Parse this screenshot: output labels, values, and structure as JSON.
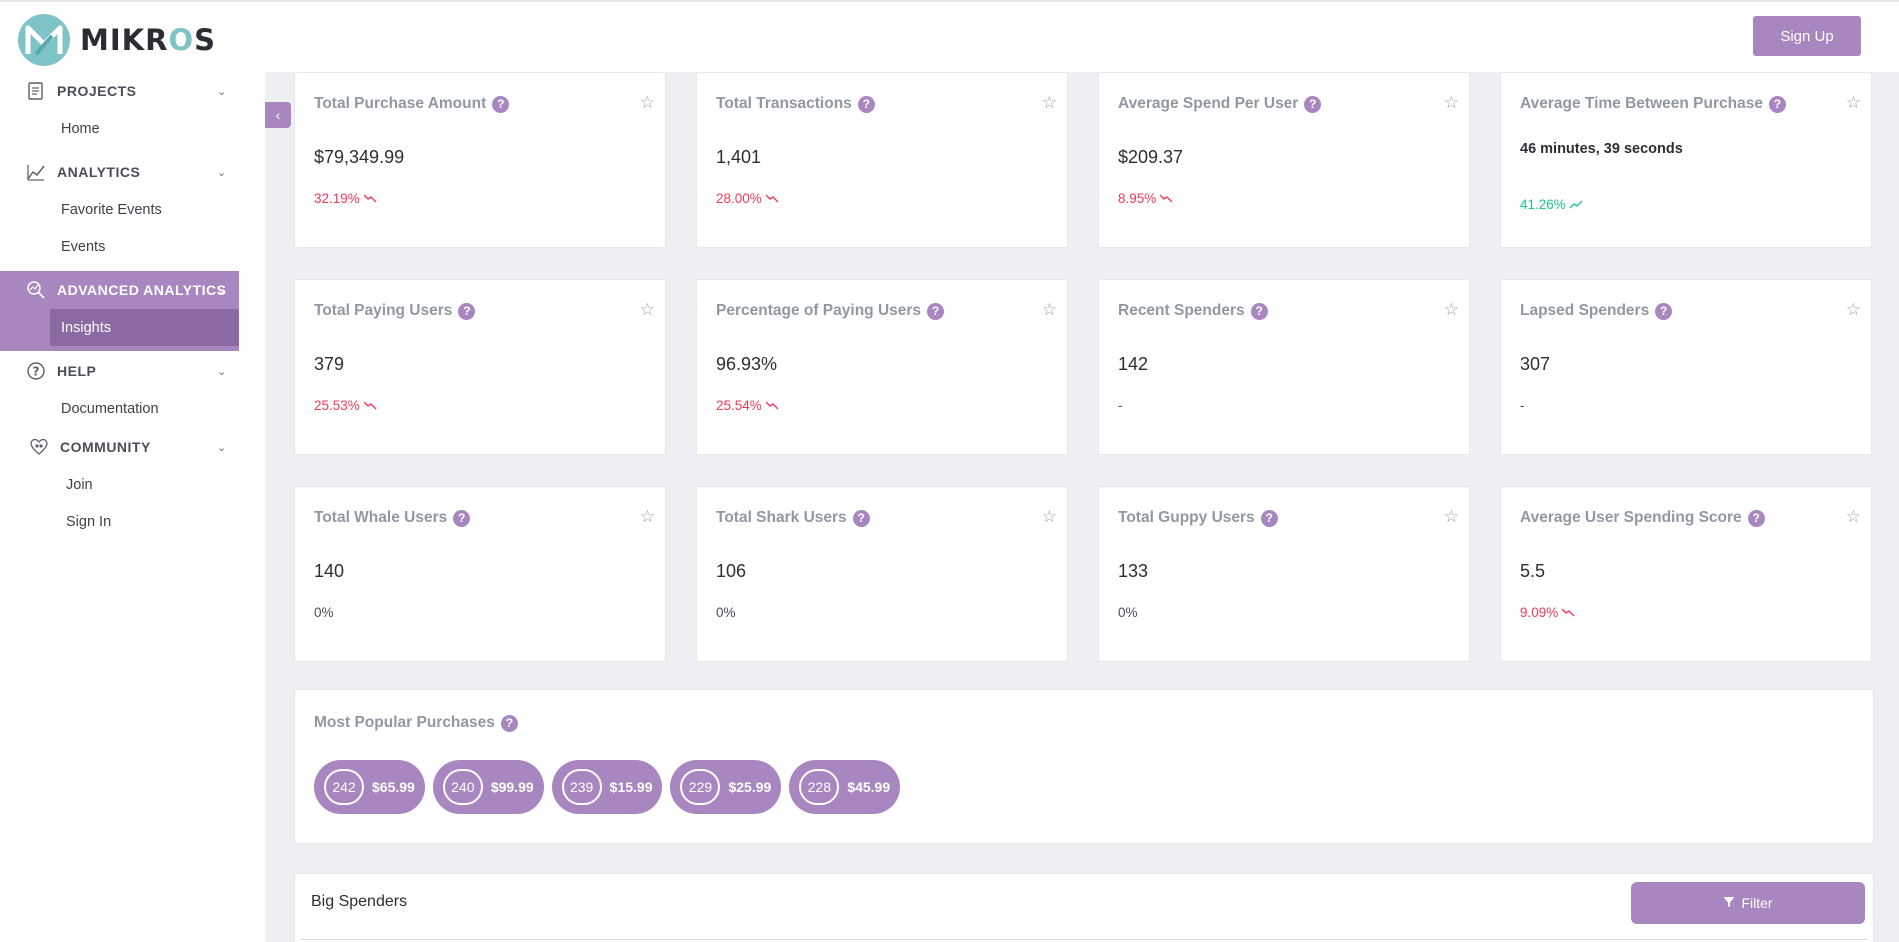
{
  "header": {
    "brand_left": "MIKR",
    "brand_o": "O",
    "brand_right": "S",
    "signup_label": "Sign Up"
  },
  "sidebar": {
    "groups": [
      {
        "label": "PROJECTS",
        "icon": "document-icon",
        "items": [
          "Home"
        ]
      },
      {
        "label": "ANALYTICS",
        "icon": "chart-icon",
        "items": [
          "Favorite Events",
          "Events"
        ]
      },
      {
        "label": "ADVANCED ANALYTICS",
        "icon": "magnify-chart-icon",
        "items": [
          "Insights"
        ],
        "active": true
      },
      {
        "label": "HELP",
        "icon": "help-icon",
        "items": [
          "Documentation"
        ]
      },
      {
        "label": "COMMUNITY",
        "icon": "community-icon",
        "items": [
          "Join",
          "Sign In"
        ]
      }
    ]
  },
  "cards": [
    {
      "title": "Total Purchase Amount",
      "value": "$79,349.99",
      "delta": "32.19%",
      "trend": "down"
    },
    {
      "title": "Total Transactions",
      "value": "1,401",
      "delta": "28.00%",
      "trend": "down"
    },
    {
      "title": "Average Spend Per User",
      "value": "$209.37",
      "delta": "8.95%",
      "trend": "down"
    },
    {
      "title": "Average Time Between Purchase",
      "value": "46 minutes, 39 seconds",
      "delta": "41.26%",
      "trend": "up"
    },
    {
      "title": "Total Paying Users",
      "value": "379",
      "delta": "25.53%",
      "trend": "down"
    },
    {
      "title": "Percentage of Paying Users",
      "value": "96.93%",
      "delta": "25.54%",
      "trend": "down"
    },
    {
      "title": "Recent Spenders",
      "value": "142",
      "delta": "-",
      "trend": "none"
    },
    {
      "title": "Lapsed Spenders",
      "value": "307",
      "delta": "-",
      "trend": "none"
    },
    {
      "title": "Total Whale Users",
      "value": "140",
      "delta": "0%",
      "trend": "none"
    },
    {
      "title": "Total Shark Users",
      "value": "106",
      "delta": "0%",
      "trend": "none"
    },
    {
      "title": "Total Guppy Users",
      "value": "133",
      "delta": "0%",
      "trend": "none"
    },
    {
      "title": "Average User Spending Score",
      "value": "5.5",
      "delta": "9.09%",
      "trend": "down"
    }
  ],
  "popular": {
    "title": "Most Popular Purchases",
    "items": [
      {
        "count": "242",
        "price": "$65.99"
      },
      {
        "count": "240",
        "price": "$99.99"
      },
      {
        "count": "239",
        "price": "$15.99"
      },
      {
        "count": "229",
        "price": "$25.99"
      },
      {
        "count": "228",
        "price": "$45.99"
      }
    ]
  },
  "big_spenders": {
    "title": "Big Spenders",
    "filter_label": "Filter"
  },
  "colors": {
    "accent": "#a887c0",
    "accent_dark": "#8b6aa3",
    "negative": "#ee3b5a",
    "positive": "#19c98a",
    "brand_teal": "#7ec3c6"
  }
}
